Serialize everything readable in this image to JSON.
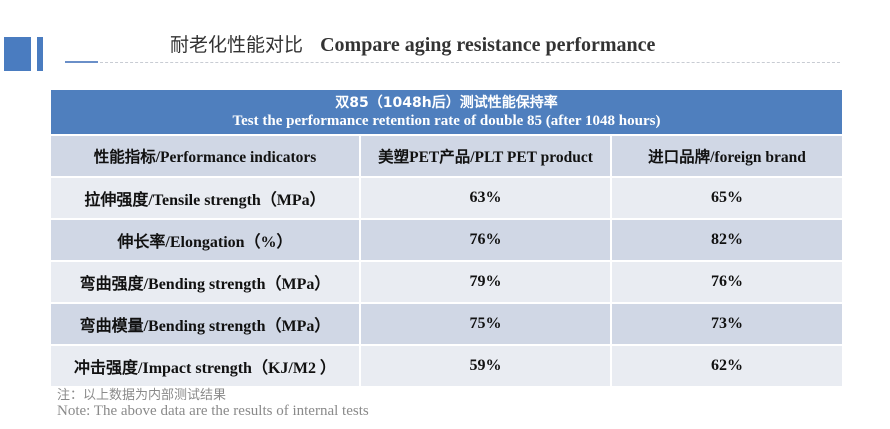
{
  "title": {
    "zh": "耐老化性能对比",
    "en": "Compare aging resistance performance"
  },
  "table": {
    "caption_zh": "双85（1048h后）测试性能保持率",
    "caption_en": "Test the performance retention rate of double 85 (after 1048 hours)",
    "columns": [
      "性能指标/Performance indicators",
      "美塑PET产品/PLT PET product",
      "进口品牌/foreign brand"
    ],
    "rows": [
      {
        "indicator": "拉伸强度/Tensile strength（MPa）",
        "plt": "63%",
        "foreign": "65%"
      },
      {
        "indicator": "伸长率/Elongation（%）",
        "plt": "76%",
        "foreign": "82%"
      },
      {
        "indicator": "弯曲强度/Bending strength（MPa）",
        "plt": "79%",
        "foreign": "76%"
      },
      {
        "indicator": "弯曲模量/Bending strength（MPa）",
        "plt": "75%",
        "foreign": "73%"
      },
      {
        "indicator": "冲击强度/Impact strength（KJ/M2 ）",
        "plt": "59%",
        "foreign": "62%"
      }
    ]
  },
  "note": {
    "zh": "注：以上数据为内部测试结果",
    "en": "Note: The above data are the results of internal tests"
  },
  "colors": {
    "accent": "#4a7cc0",
    "header_bg": "#4f7fbe",
    "row_alt": "#d0d7e5",
    "row_plain": "#e9ecf2"
  }
}
